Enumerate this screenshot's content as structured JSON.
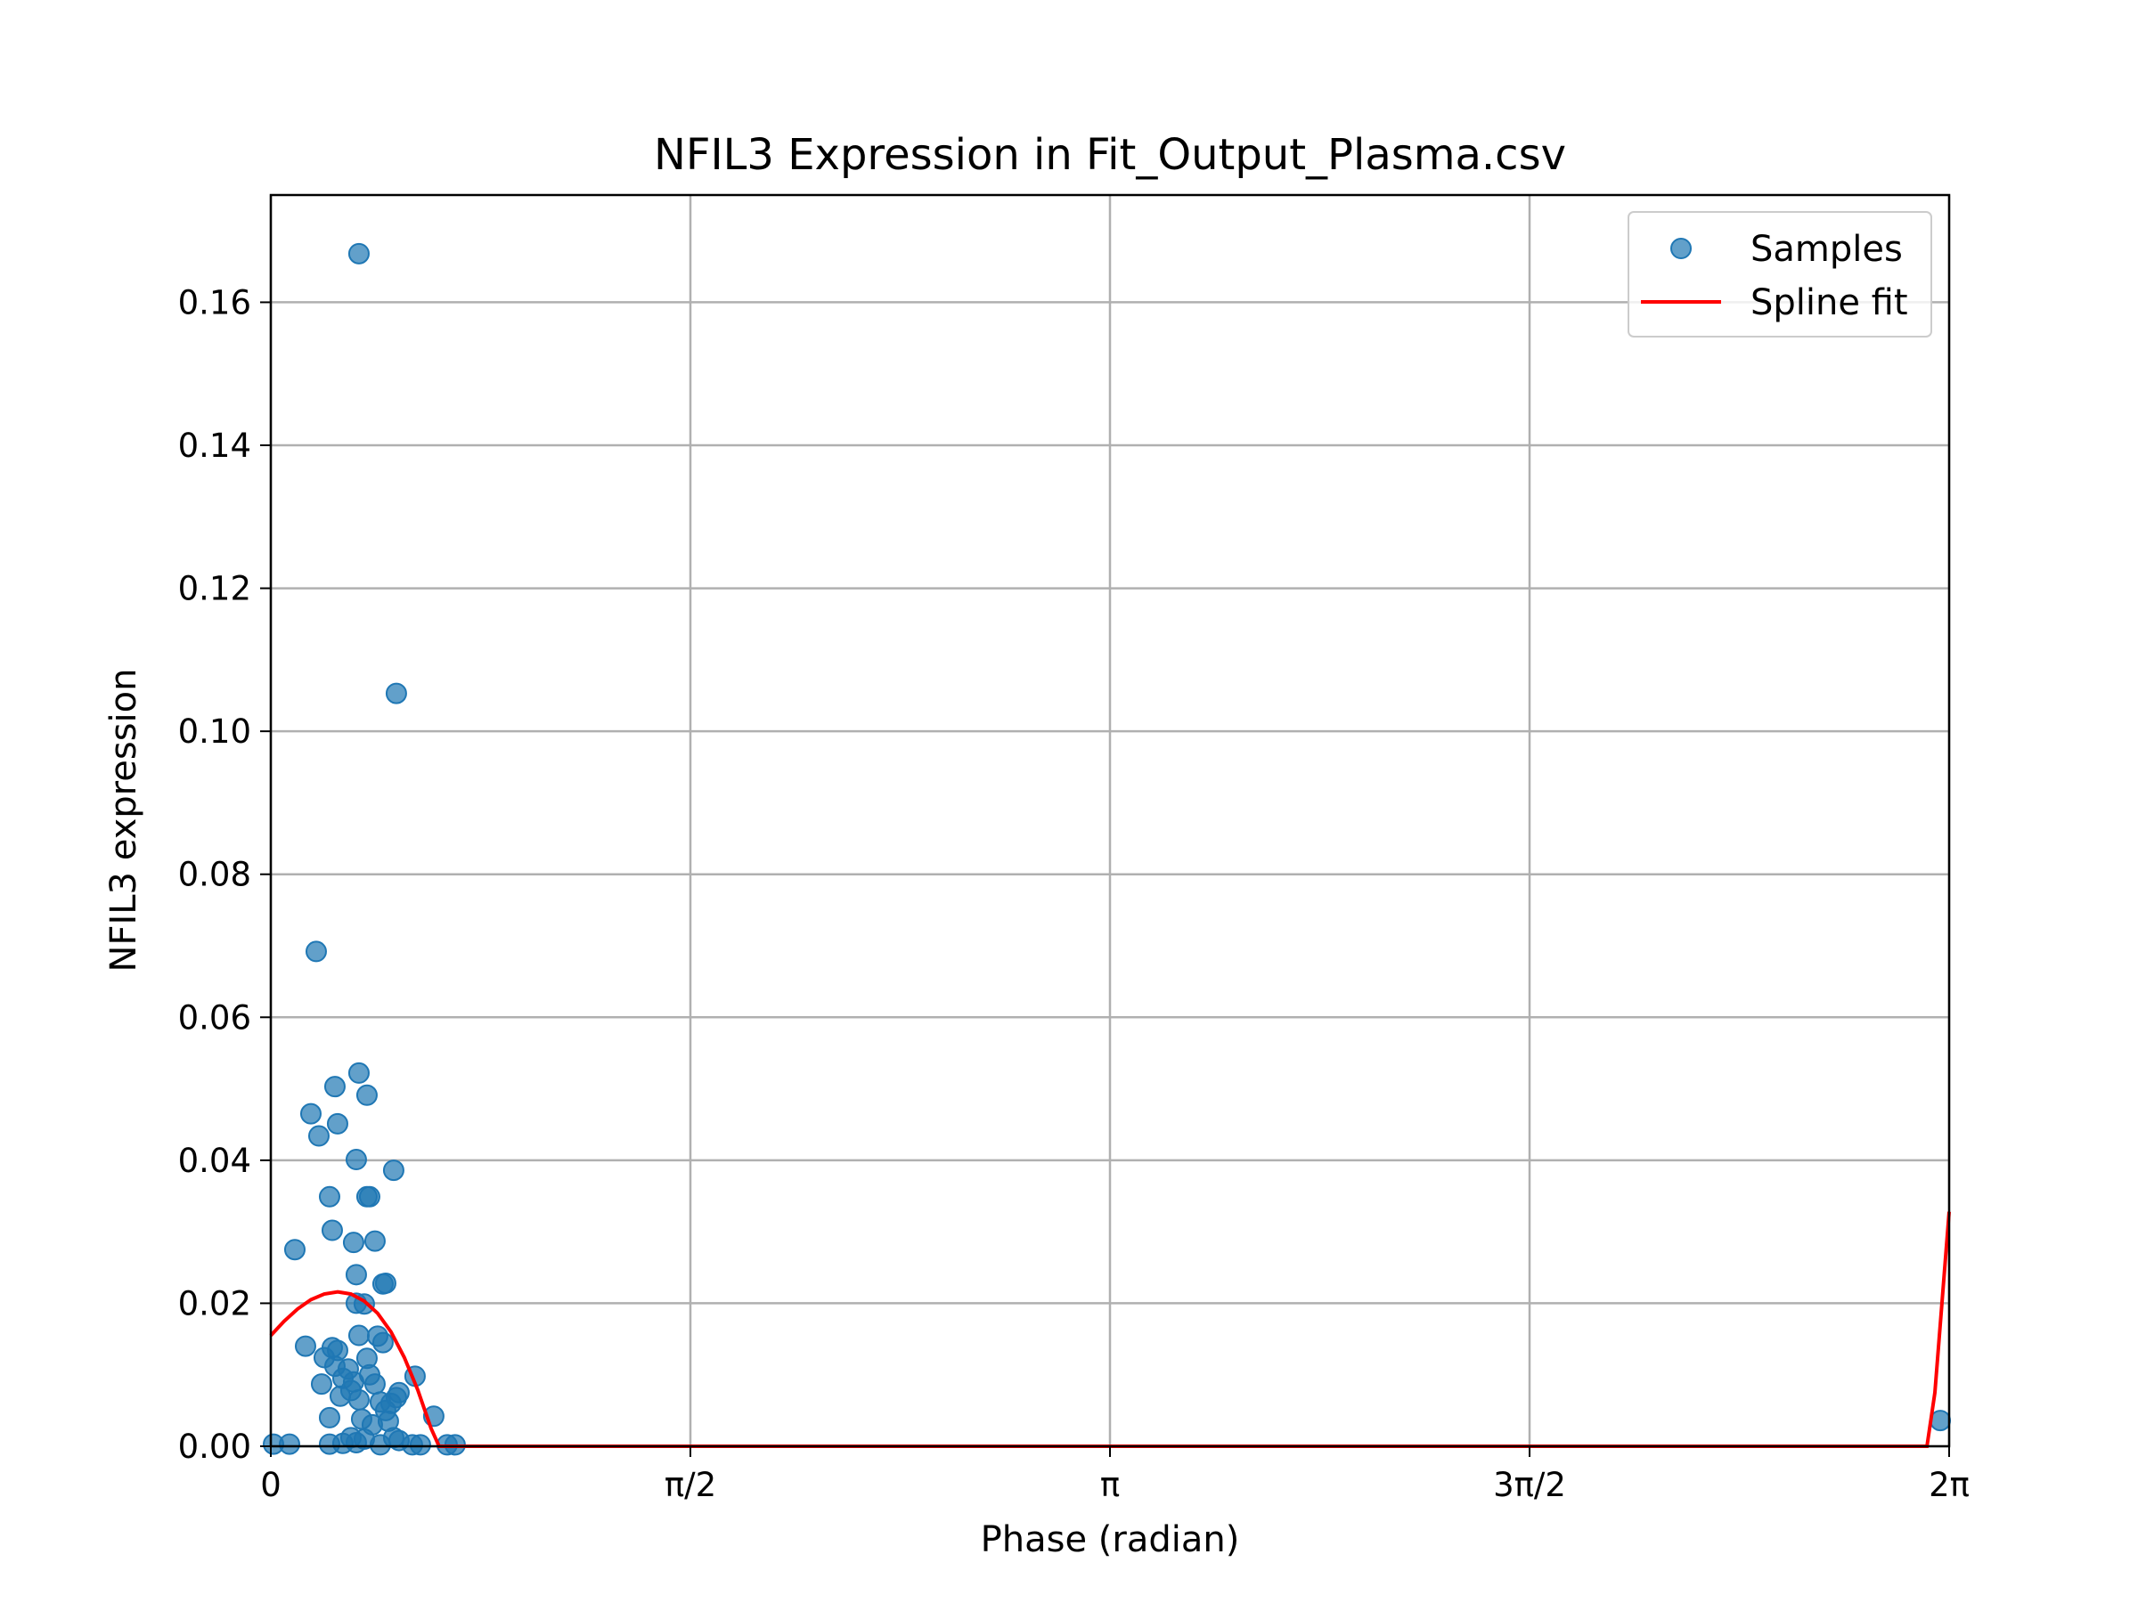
{
  "chart_data": {
    "type": "scatter",
    "title": "NFIL3 Expression in Fit_Output_Plasma.csv",
    "xlabel": "Phase (radian)",
    "ylabel": "NFIL3 expression",
    "xlim": [
      0,
      6.2832
    ],
    "ylim": [
      0,
      0.175
    ],
    "grid": true,
    "legend_position": "top-right",
    "x_ticks": [
      {
        "value": 0,
        "label": "0"
      },
      {
        "value": 1.5708,
        "label": "π/2"
      },
      {
        "value": 3.1416,
        "label": "π"
      },
      {
        "value": 4.7124,
        "label": "3π/2"
      },
      {
        "value": 6.2832,
        "label": "2π"
      }
    ],
    "y_ticks": [
      {
        "value": 0,
        "label": "0.00"
      },
      {
        "value": 0.02,
        "label": "0.02"
      },
      {
        "value": 0.04,
        "label": "0.04"
      },
      {
        "value": 0.06,
        "label": "0.06"
      },
      {
        "value": 0.08,
        "label": "0.08"
      },
      {
        "value": 0.1,
        "label": "0.10"
      },
      {
        "value": 0.12,
        "label": "0.12"
      },
      {
        "value": 0.14,
        "label": "0.14"
      },
      {
        "value": 0.16,
        "label": "0.16"
      }
    ],
    "series": [
      {
        "name": "Samples",
        "kind": "scatter",
        "color": "#1f77b4",
        "points": [
          [
            0.33,
            0.1668
          ],
          [
            0.47,
            0.1053
          ],
          [
            0.17,
            0.0692
          ],
          [
            0.33,
            0.0522
          ],
          [
            0.24,
            0.0503
          ],
          [
            0.36,
            0.0491
          ],
          [
            0.15,
            0.0465
          ],
          [
            0.18,
            0.0434
          ],
          [
            0.25,
            0.0451
          ],
          [
            0.32,
            0.0401
          ],
          [
            0.46,
            0.0386
          ],
          [
            0.22,
            0.0349
          ],
          [
            0.36,
            0.0349
          ],
          [
            0.37,
            0.0349
          ],
          [
            0.23,
            0.0302
          ],
          [
            0.09,
            0.0275
          ],
          [
            0.31,
            0.0285
          ],
          [
            0.39,
            0.0287
          ],
          [
            0.32,
            0.024
          ],
          [
            0.42,
            0.0227
          ],
          [
            0.43,
            0.0228
          ],
          [
            0.32,
            0.02
          ],
          [
            0.35,
            0.0199
          ],
          [
            0.33,
            0.0155
          ],
          [
            0.4,
            0.0154
          ],
          [
            0.42,
            0.0145
          ],
          [
            0.13,
            0.014
          ],
          [
            0.23,
            0.0138
          ],
          [
            0.25,
            0.0134
          ],
          [
            0.2,
            0.0124
          ],
          [
            0.36,
            0.0123
          ],
          [
            0.24,
            0.0112
          ],
          [
            0.29,
            0.0108
          ],
          [
            0.37,
            0.01
          ],
          [
            0.27,
            0.0095
          ],
          [
            0.31,
            0.009
          ],
          [
            0.19,
            0.0087
          ],
          [
            0.39,
            0.0087
          ],
          [
            0.54,
            0.0098
          ],
          [
            0.3,
            0.0078
          ],
          [
            0.48,
            0.0075
          ],
          [
            0.47,
            0.0068
          ],
          [
            0.26,
            0.007
          ],
          [
            0.33,
            0.0065
          ],
          [
            0.41,
            0.0062
          ],
          [
            0.45,
            0.006
          ],
          [
            0.43,
            0.005
          ],
          [
            0.61,
            0.0042
          ],
          [
            0.22,
            0.004
          ],
          [
            0.34,
            0.0038
          ],
          [
            0.44,
            0.0035
          ],
          [
            0.38,
            0.003
          ],
          [
            0.3,
            0.0012
          ],
          [
            0.35,
            0.001
          ],
          [
            0.46,
            0.0012
          ],
          [
            0.48,
            0.0008
          ],
          [
            0.32,
            0.0005
          ],
          [
            0.27,
            0.0004
          ],
          [
            0.22,
            0.0003
          ],
          [
            0.01,
            0.0003
          ],
          [
            0.07,
            0.0003
          ],
          [
            0.53,
            0.0002
          ],
          [
            0.56,
            0.0002
          ],
          [
            0.66,
            0.0002
          ],
          [
            0.69,
            0.0002
          ],
          [
            0.41,
            0.0002
          ],
          [
            6.25,
            0.0036
          ]
        ]
      },
      {
        "name": "Spline fit",
        "kind": "line",
        "color": "#ff0000",
        "points": [
          [
            0.0,
            0.0155
          ],
          [
            0.05,
            0.0175
          ],
          [
            0.1,
            0.0192
          ],
          [
            0.15,
            0.0205
          ],
          [
            0.2,
            0.0213
          ],
          [
            0.25,
            0.0216
          ],
          [
            0.3,
            0.0213
          ],
          [
            0.35,
            0.0203
          ],
          [
            0.4,
            0.0186
          ],
          [
            0.45,
            0.016
          ],
          [
            0.5,
            0.0124
          ],
          [
            0.55,
            0.0079
          ],
          [
            0.6,
            0.0025
          ],
          [
            0.63,
            0.0
          ],
          [
            1.0,
            0.0
          ],
          [
            3.0,
            0.0
          ],
          [
            5.0,
            0.0
          ],
          [
            6.2,
            0.0
          ],
          [
            6.23,
            0.0075
          ],
          [
            6.2832,
            0.0328
          ]
        ]
      }
    ]
  }
}
